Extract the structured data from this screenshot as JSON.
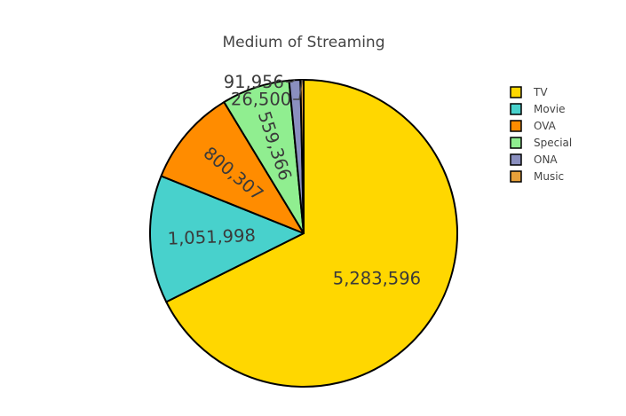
{
  "chart_data": {
    "type": "pie",
    "title": "Medium of Streaming",
    "categories": [
      "TV",
      "Movie",
      "OVA",
      "Special",
      "ONA",
      "Music"
    ],
    "values": [
      5283596,
      1051998,
      800307,
      559366,
      91956,
      26500
    ],
    "value_labels": [
      "5,283,596",
      "1,051,998",
      "800,307",
      "559,366",
      "91,956",
      "26,500"
    ],
    "colors": [
      "#FFD700",
      "#48D1CC",
      "#FF8C00",
      "#90EE90",
      "#8A8FBF",
      "#E8A13A"
    ],
    "slice_outline_color": "#000000",
    "legend_position": "top-right",
    "direction": "clockwise",
    "start_angle": "top"
  }
}
